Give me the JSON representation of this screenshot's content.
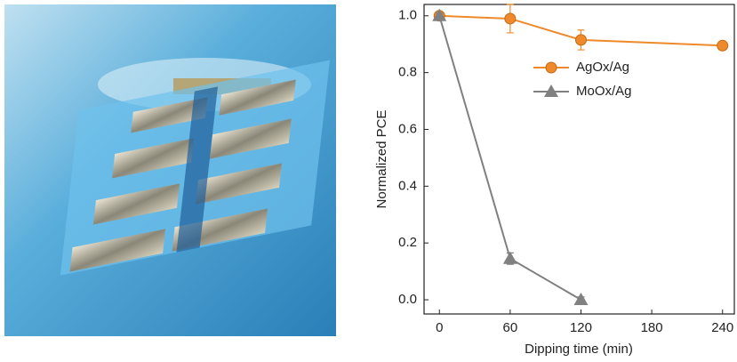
{
  "chart_data": {
    "type": "line",
    "xlabel": "Dipping time (min)",
    "ylabel": "Normalized PCE",
    "xlim": [
      -13,
      250
    ],
    "ylim": [
      -0.05,
      1.04
    ],
    "xticks": [
      0,
      60,
      120,
      180,
      240
    ],
    "yticks": [
      {
        "value": 0,
        "label": "0.0"
      },
      0.2,
      0.4,
      0.6,
      0.8,
      {
        "value": 1,
        "label": "1.0"
      }
    ],
    "series": [
      {
        "name": "AgOx/Ag",
        "color": "#ee8a2c",
        "marker": "circle",
        "x": [
          0,
          60,
          120,
          240
        ],
        "values": [
          1.0,
          0.99,
          0.915,
          0.895
        ],
        "errors": [
          0.01,
          0.05,
          0.035,
          0.01
        ]
      },
      {
        "name": "MoOx/Ag",
        "color": "#808080",
        "marker": "triangle",
        "x": [
          0,
          60,
          120
        ],
        "values": [
          1.0,
          0.145,
          0.0
        ],
        "errors": [
          0.01,
          0.02,
          0.01
        ]
      }
    ]
  }
}
